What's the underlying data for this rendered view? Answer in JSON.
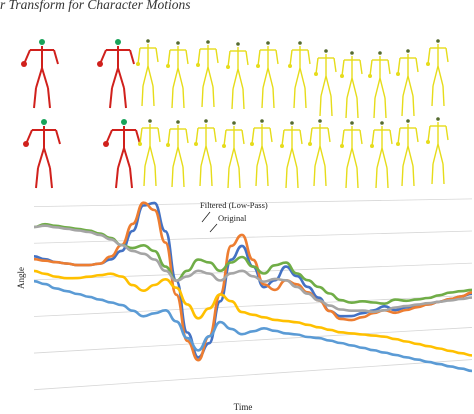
{
  "header": {
    "title_fragment": "r Transform for Character Motions"
  },
  "figure": {
    "skeleton_rows": [
      {
        "name": "row-1",
        "reference_color": "#d0201c",
        "trail_color": "#e6dc1a",
        "joint_color": "#19a35a"
      },
      {
        "name": "row-2",
        "reference_color": "#d0201c",
        "trail_color": "#e6dc1a",
        "joint_color": "#19a35a"
      }
    ]
  },
  "chart_data": {
    "type": "line",
    "xlabel": "Time",
    "ylabel": "Angle",
    "annotations": [
      "Filtered (Low-Pass)",
      "Original"
    ],
    "grid": true,
    "x": [
      0,
      1,
      2,
      3,
      4,
      5,
      6,
      7,
      8,
      9,
      10,
      11,
      12,
      13,
      14,
      15,
      16,
      17,
      18,
      19,
      20,
      21,
      22,
      23,
      24,
      25,
      26,
      27,
      28,
      29,
      30,
      31,
      32,
      33,
      34,
      35,
      36,
      37,
      38,
      39,
      40
    ],
    "series": [
      {
        "color": "#4472c4",
        "values": [
          0.62,
          0.6,
          0.58,
          0.57,
          0.56,
          0.56,
          0.57,
          0.6,
          0.66,
          0.8,
          0.98,
          1.0,
          0.8,
          0.45,
          0.08,
          -0.1,
          0.0,
          0.3,
          0.6,
          0.7,
          0.55,
          0.4,
          0.45,
          0.55,
          0.48,
          0.4,
          0.32,
          0.22,
          0.18,
          0.18,
          0.2,
          0.22,
          0.25,
          0.22,
          0.24,
          0.25,
          0.26,
          0.28,
          0.3,
          0.32,
          0.34
        ]
      },
      {
        "color": "#ed7d31",
        "values": [
          0.6,
          0.59,
          0.58,
          0.57,
          0.56,
          0.56,
          0.57,
          0.62,
          0.7,
          0.85,
          1.0,
          0.95,
          0.72,
          0.35,
          0.02,
          -0.12,
          0.05,
          0.35,
          0.7,
          0.78,
          0.6,
          0.42,
          0.38,
          0.45,
          0.42,
          0.36,
          0.3,
          0.22,
          0.16,
          0.15,
          0.17,
          0.2,
          0.22,
          0.2,
          0.22,
          0.24,
          0.26,
          0.28,
          0.3,
          0.32,
          0.35
        ]
      },
      {
        "color": "#70ad47",
        "values": [
          0.82,
          0.84,
          0.83,
          0.82,
          0.81,
          0.8,
          0.78,
          0.75,
          0.7,
          0.68,
          0.7,
          0.66,
          0.55,
          0.45,
          0.52,
          0.6,
          0.58,
          0.52,
          0.58,
          0.62,
          0.55,
          0.5,
          0.56,
          0.58,
          0.5,
          0.45,
          0.4,
          0.35,
          0.3,
          0.28,
          0.29,
          0.28,
          0.27,
          0.3,
          0.29,
          0.3,
          0.31,
          0.33,
          0.35,
          0.36,
          0.37
        ]
      },
      {
        "color": "#a5a5a5",
        "values": [
          0.82,
          0.83,
          0.82,
          0.81,
          0.8,
          0.79,
          0.77,
          0.74,
          0.7,
          0.66,
          0.64,
          0.6,
          0.52,
          0.45,
          0.48,
          0.52,
          0.5,
          0.45,
          0.5,
          0.52,
          0.48,
          0.44,
          0.46,
          0.45,
          0.4,
          0.35,
          0.3,
          0.26,
          0.23,
          0.22,
          0.22,
          0.21,
          0.22,
          0.24,
          0.25,
          0.26,
          0.27,
          0.28,
          0.29,
          0.3,
          0.31
        ]
      },
      {
        "color": "#ffc000",
        "values": [
          0.52,
          0.5,
          0.48,
          0.47,
          0.47,
          0.48,
          0.49,
          0.5,
          0.48,
          0.42,
          0.38,
          0.42,
          0.46,
          0.4,
          0.28,
          0.18,
          0.25,
          0.35,
          0.3,
          0.22,
          0.2,
          0.18,
          0.16,
          0.15,
          0.14,
          0.12,
          0.1,
          0.08,
          0.06,
          0.05,
          0.04,
          0.03,
          0.02,
          0.0,
          -0.02,
          -0.04,
          -0.06,
          -0.08,
          -0.1,
          -0.12,
          -0.14
        ]
      },
      {
        "color": "#5b9bd5",
        "values": [
          0.45,
          0.43,
          0.4,
          0.38,
          0.36,
          0.34,
          0.32,
          0.3,
          0.28,
          0.24,
          0.2,
          0.22,
          0.24,
          0.16,
          0.04,
          -0.05,
          0.05,
          0.15,
          0.1,
          0.06,
          0.08,
          0.1,
          0.08,
          0.06,
          0.05,
          0.03,
          0.02,
          0.0,
          -0.02,
          -0.04,
          -0.06,
          -0.08,
          -0.1,
          -0.12,
          -0.14,
          -0.16,
          -0.18,
          -0.2,
          -0.22,
          -0.24,
          -0.26
        ]
      }
    ]
  }
}
